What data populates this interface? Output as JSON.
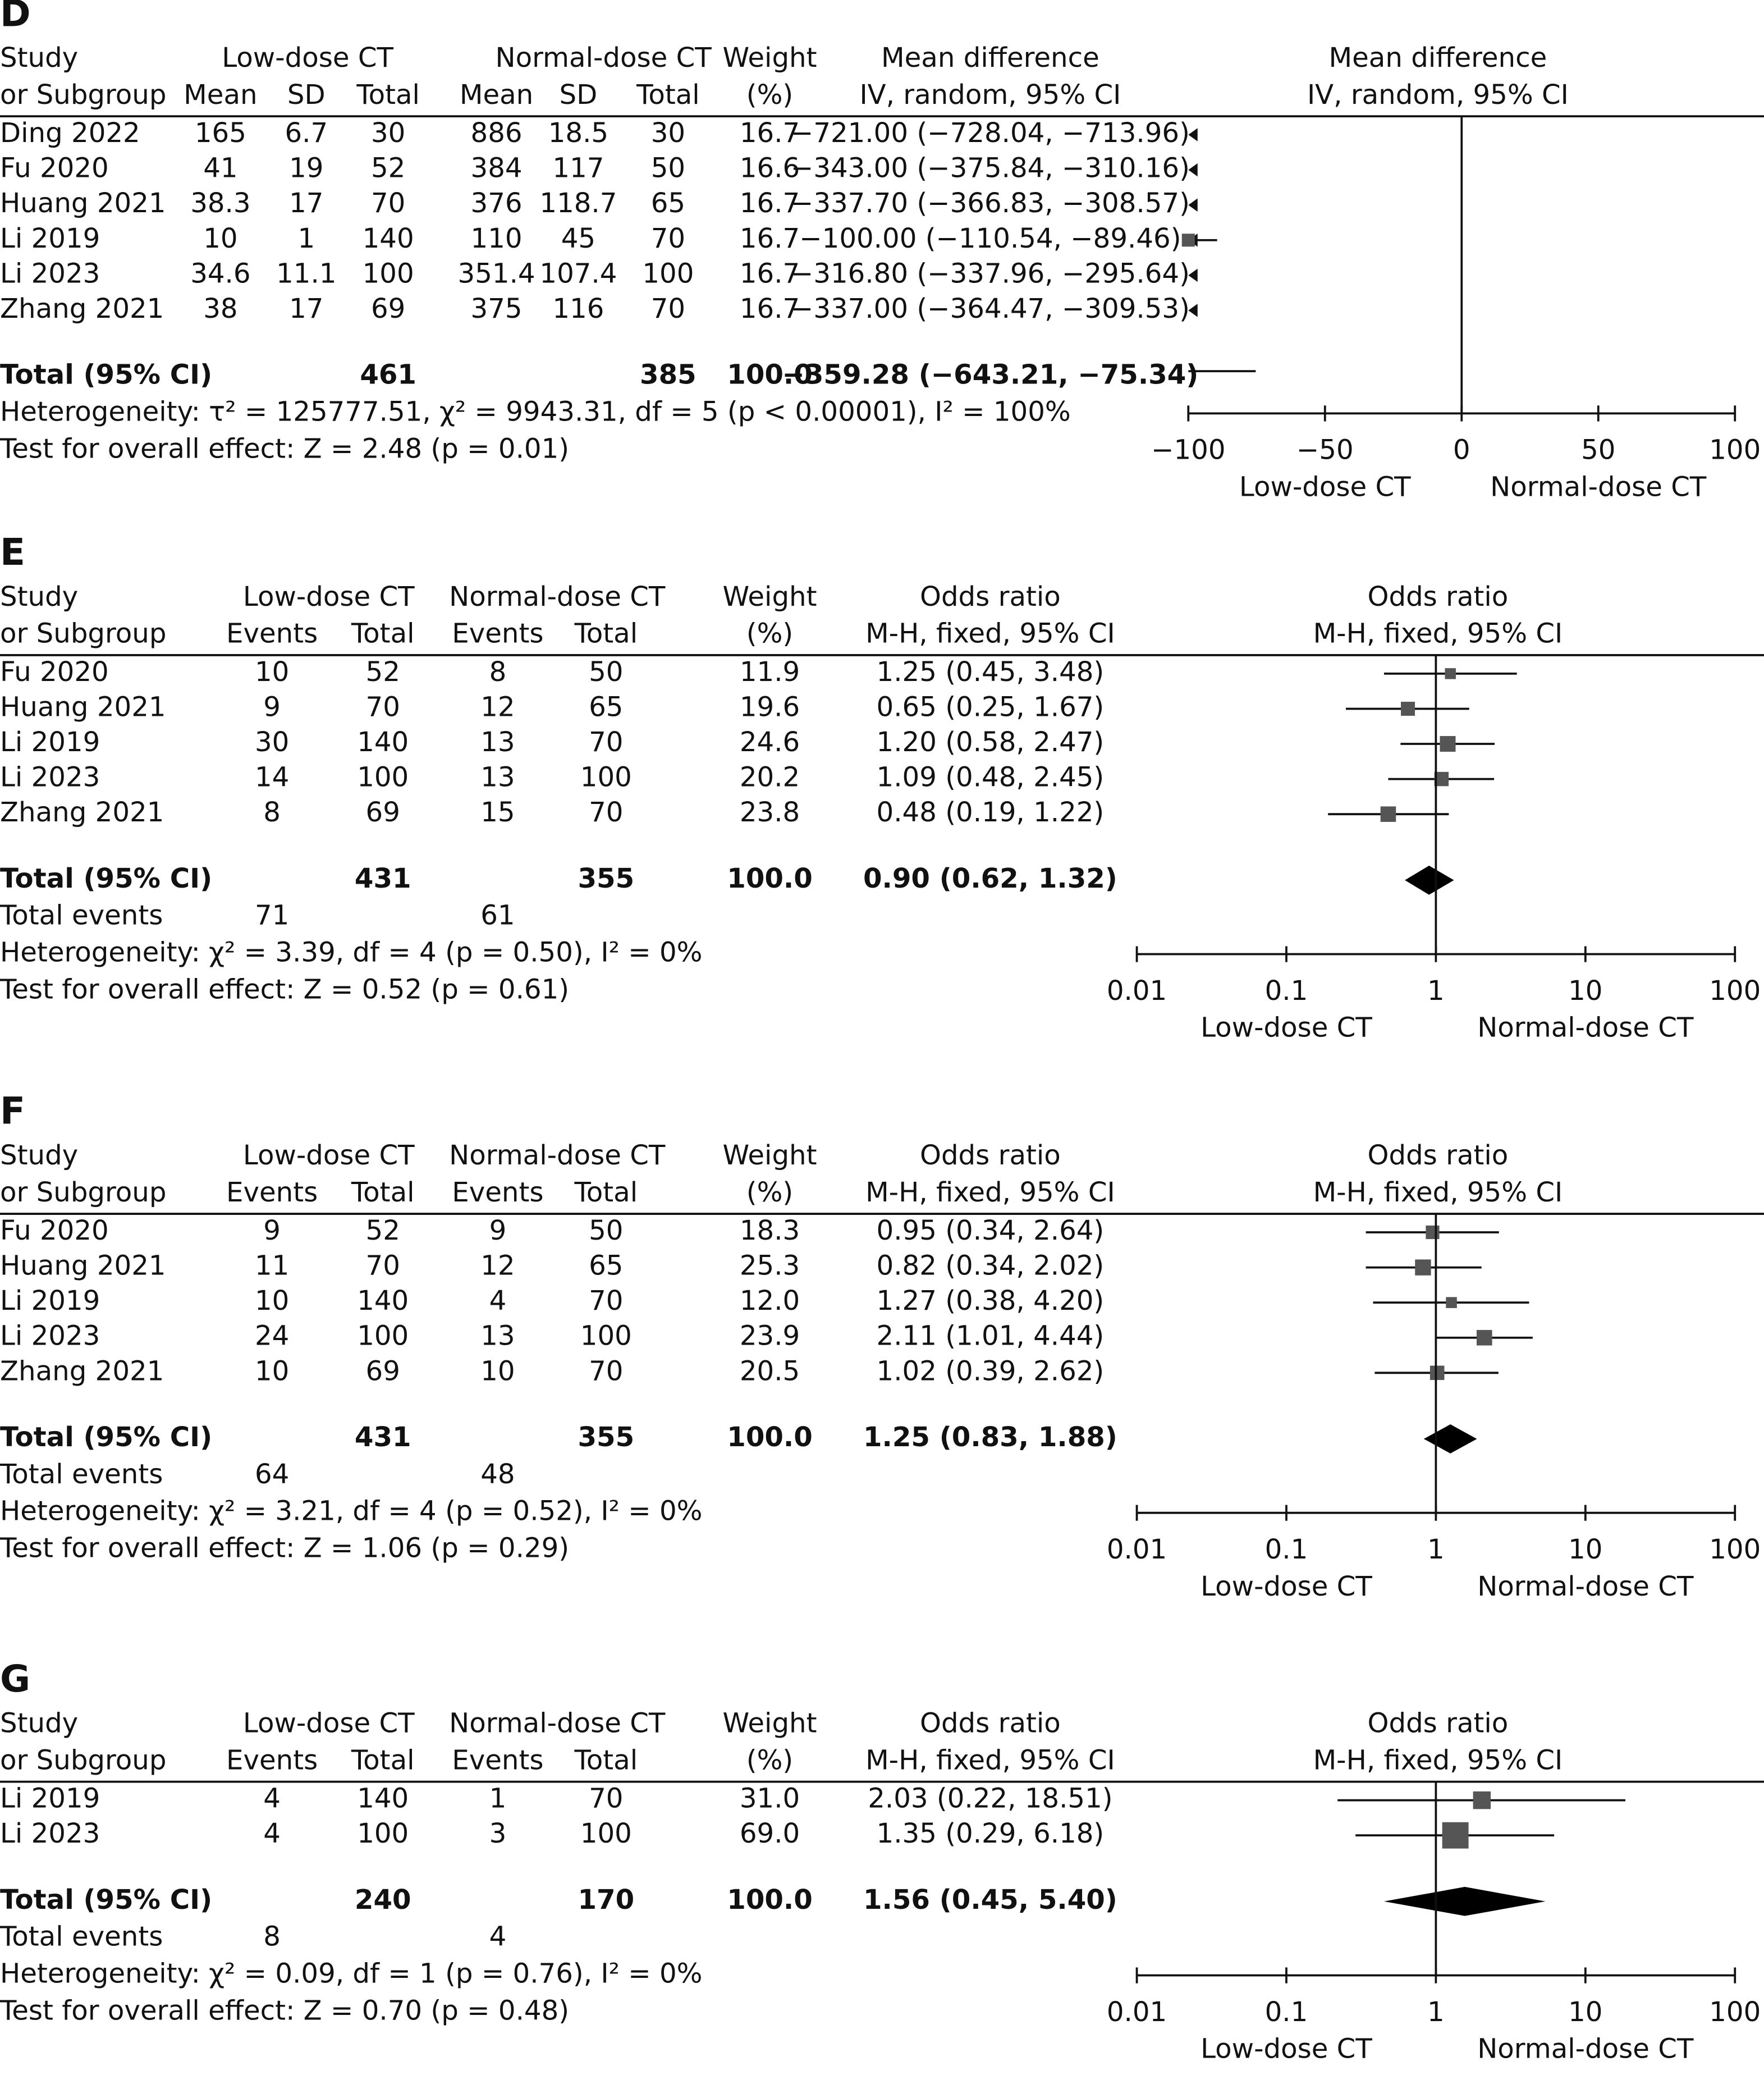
{
  "chart_data": [
    {
      "type": "forest",
      "label": "D",
      "header_top": [
        "Study",
        "Low-dose CT",
        "Normal-dose CT",
        "Weight",
        "Mean difference",
        "Mean difference"
      ],
      "header_bottom": [
        "or Subgroup",
        "Mean",
        "SD",
        "Total",
        "Mean",
        "SD",
        "Total",
        "(%)",
        "IV, random, 95% CI",
        "IV, random, 95% CI"
      ],
      "studies": [
        "Ding 2022",
        "Fu 2020",
        "Huang 2021",
        "Li 2019",
        "Li 2023",
        "Zhang 2021"
      ],
      "cells": [
        [
          "165",
          "6.7",
          "30",
          "886",
          "18.5",
          "30"
        ],
        [
          "41",
          "19",
          "52",
          "384",
          "117",
          "50"
        ],
        [
          "38.3",
          "17",
          "70",
          "376",
          "118.7",
          "65"
        ],
        [
          "10",
          "1",
          "140",
          "110",
          "45",
          "70"
        ],
        [
          "34.6",
          "11.1",
          "100",
          "351.4",
          "107.4",
          "100"
        ],
        [
          "38",
          "17",
          "69",
          "375",
          "116",
          "70"
        ]
      ],
      "weights": [
        16.7,
        16.6,
        16.7,
        16.7,
        16.7,
        16.7
      ],
      "weight_labels": [
        "16.7",
        "16.6",
        "16.7",
        "16.7",
        "16.7",
        "16.7"
      ],
      "values": [
        -721.0,
        -343.0,
        -337.7,
        -100.0,
        -316.8,
        -337.0
      ],
      "ci_low": [
        -728.04,
        -375.84,
        -366.83,
        -110.54,
        -337.96,
        -364.47
      ],
      "ci_high": [
        -713.96,
        -310.16,
        -308.57,
        -89.46,
        -295.64,
        -309.53
      ],
      "value_labels": [
        "−721.00 (−728.04, −713.96)",
        "−343.00 (−375.84, −310.16)",
        "−337.70 (−366.83, −308.57)",
        "−100.00 (−110.54, −89.46)",
        "−316.80 (−337.96, −295.64)",
        "−337.00 (−364.47, −309.53)"
      ],
      "total": {
        "label": "Total (95% CI)",
        "cells": [
          "461",
          "385"
        ],
        "weight_label": "100.0",
        "value": -359.28,
        "ci_low": -643.21,
        "ci_high": -75.34,
        "value_label": "−359.28 (−643.21, −75.34)"
      },
      "heterogeneity": "Heterogeneity: τ² = 125777.51, χ² = 9943.31, df = 5 (p < 0.00001), I² = 100%",
      "overall_effect": "Test for overall effect: Z = 2.48 (p = 0.01)",
      "log": false,
      "xlim": [
        -100,
        100
      ],
      "xticks": [
        {
          "value": -100,
          "label": "−100"
        },
        {
          "value": -50,
          "label": "−50"
        },
        0,
        50,
        100
      ],
      "xlabel_left": "Low-dose CT",
      "xlabel_right": "Normal-dose CT"
    },
    {
      "type": "forest",
      "label": "E",
      "header_top": [
        "Study",
        "Low-dose CT",
        "Normal-dose CT",
        "Weight",
        "Odds ratio",
        "Odds ratio"
      ],
      "header_bottom": [
        "or Subgroup",
        "Events",
        "Total",
        "Events",
        "Total",
        "(%)",
        "M-H, fixed, 95% CI",
        "M-H, fixed, 95% CI"
      ],
      "studies": [
        "Fu 2020",
        "Huang 2021",
        "Li 2019",
        "Li 2023",
        "Zhang 2021"
      ],
      "cells": [
        [
          "10",
          "52",
          "8",
          "50"
        ],
        [
          "9",
          "70",
          "12",
          "65"
        ],
        [
          "30",
          "140",
          "13",
          "70"
        ],
        [
          "14",
          "100",
          "13",
          "100"
        ],
        [
          "8",
          "69",
          "15",
          "70"
        ]
      ],
      "weights": [
        11.9,
        19.6,
        24.6,
        20.2,
        23.8
      ],
      "weight_labels": [
        "11.9",
        "19.6",
        "24.6",
        "20.2",
        "23.8"
      ],
      "values": [
        1.25,
        0.65,
        1.2,
        1.09,
        0.48
      ],
      "ci_low": [
        0.45,
        0.25,
        0.58,
        0.48,
        0.19
      ],
      "ci_high": [
        3.48,
        1.67,
        2.47,
        2.45,
        1.22
      ],
      "value_labels": [
        "1.25 (0.45, 3.48)",
        "0.65 (0.25, 1.67)",
        "1.20 (0.58, 2.47)",
        "1.09 (0.48, 2.45)",
        "0.48 (0.19, 1.22)"
      ],
      "total": {
        "label": "Total (95% CI)",
        "cells": [
          "431",
          "355"
        ],
        "weight_label": "100.0",
        "value": 0.9,
        "ci_low": 0.62,
        "ci_high": 1.32,
        "value_label": "0.90 (0.62, 1.32)"
      },
      "total_events": {
        "label": "Total events",
        "cells": [
          "71",
          "61"
        ]
      },
      "heterogeneity": "Heterogeneity: χ² = 3.39, df = 4 (p = 0.50), I² = 0%",
      "overall_effect": "Test for overall effect: Z = 0.52 (p = 0.61)",
      "log": true,
      "xlim": [
        0.01,
        100
      ],
      "xticks": [
        0.01,
        0.1,
        1,
        10,
        100
      ],
      "xlabel_left": "Low-dose CT",
      "xlabel_right": "Normal-dose CT"
    },
    {
      "type": "forest",
      "label": "F",
      "header_top": [
        "Study",
        "Low-dose CT",
        "Normal-dose CT",
        "Weight",
        "Odds ratio",
        "Odds ratio"
      ],
      "header_bottom": [
        "or Subgroup",
        "Events",
        "Total",
        "Events",
        "Total",
        "(%)",
        "M-H, fixed, 95% CI",
        "M-H, fixed, 95% CI"
      ],
      "studies": [
        "Fu 2020",
        "Huang 2021",
        "Li 2019",
        "Li 2023",
        "Zhang 2021"
      ],
      "cells": [
        [
          "9",
          "52",
          "9",
          "50"
        ],
        [
          "11",
          "70",
          "12",
          "65"
        ],
        [
          "10",
          "140",
          "4",
          "70"
        ],
        [
          "24",
          "100",
          "13",
          "100"
        ],
        [
          "10",
          "69",
          "10",
          "70"
        ]
      ],
      "weights": [
        18.3,
        25.3,
        12.0,
        23.9,
        20.5
      ],
      "weight_labels": [
        "18.3",
        "25.3",
        "12.0",
        "23.9",
        "20.5"
      ],
      "values": [
        0.95,
        0.82,
        1.27,
        2.11,
        1.02
      ],
      "ci_low": [
        0.34,
        0.34,
        0.38,
        1.01,
        0.39
      ],
      "ci_high": [
        2.64,
        2.02,
        4.2,
        4.44,
        2.62
      ],
      "value_labels": [
        "0.95 (0.34, 2.64)",
        "0.82 (0.34, 2.02)",
        "1.27 (0.38, 4.20)",
        "2.11 (1.01, 4.44)",
        "1.02 (0.39, 2.62)"
      ],
      "total": {
        "label": "Total (95% CI)",
        "cells": [
          "431",
          "355"
        ],
        "weight_label": "100.0",
        "value": 1.25,
        "ci_low": 0.83,
        "ci_high": 1.88,
        "value_label": "1.25 (0.83, 1.88)"
      },
      "total_events": {
        "label": "Total events",
        "cells": [
          "64",
          "48"
        ]
      },
      "heterogeneity": "Heterogeneity: χ² = 3.21, df = 4 (p = 0.52), I² = 0%",
      "overall_effect": "Test for overall effect: Z = 1.06 (p = 0.29)",
      "log": true,
      "xlim": [
        0.01,
        100
      ],
      "xticks": [
        0.01,
        0.1,
        1,
        10,
        100
      ],
      "xlabel_left": "Low-dose CT",
      "xlabel_right": "Normal-dose CT"
    },
    {
      "type": "forest",
      "label": "G",
      "header_top": [
        "Study",
        "Low-dose CT",
        "Normal-dose CT",
        "Weight",
        "Odds ratio",
        "Odds ratio"
      ],
      "header_bottom": [
        "or Subgroup",
        "Events",
        "Total",
        "Events",
        "Total",
        "(%)",
        "M-H, fixed, 95% CI",
        "M-H, fixed, 95% CI"
      ],
      "studies": [
        "Li 2019",
        "Li 2023"
      ],
      "cells": [
        [
          "4",
          "140",
          "1",
          "70"
        ],
        [
          "4",
          "100",
          "3",
          "100"
        ]
      ],
      "weights": [
        31.0,
        69.0
      ],
      "weight_labels": [
        "31.0",
        "69.0"
      ],
      "values": [
        2.03,
        1.35
      ],
      "ci_low": [
        0.22,
        0.29
      ],
      "ci_high": [
        18.51,
        6.18
      ],
      "value_labels": [
        "2.03 (0.22, 18.51)",
        "1.35 (0.29, 6.18)"
      ],
      "total": {
        "label": "Total (95% CI)",
        "cells": [
          "240",
          "170"
        ],
        "weight_label": "100.0",
        "value": 1.56,
        "ci_low": 0.45,
        "ci_high": 5.4,
        "value_label": "1.56 (0.45, 5.40)"
      },
      "total_events": {
        "label": "Total events",
        "cells": [
          "8",
          "4"
        ]
      },
      "heterogeneity": "Heterogeneity: χ² = 0.09, df = 1 (p = 0.76), I² = 0%",
      "overall_effect": "Test for overall effect: Z = 0.70 (p = 0.48)",
      "log": true,
      "xlim": [
        0.01,
        100
      ],
      "xticks": [
        0.01,
        0.1,
        1,
        10,
        100
      ],
      "xlabel_left": "Low-dose CT",
      "xlabel_right": "Normal-dose CT"
    }
  ]
}
